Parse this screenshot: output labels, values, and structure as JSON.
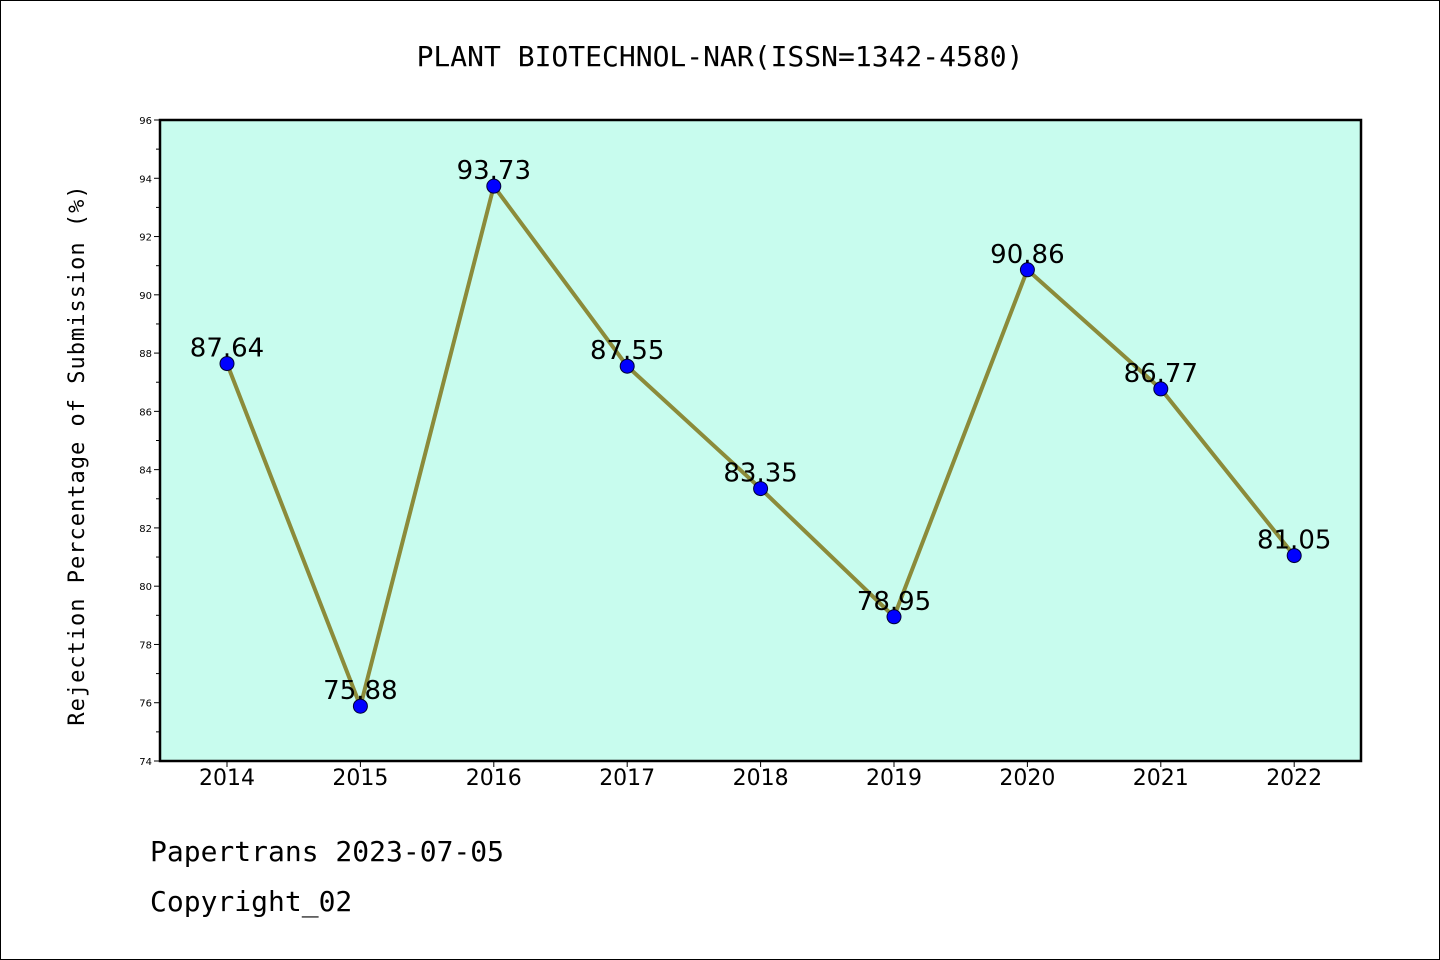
{
  "chart_data": {
    "type": "line",
    "title": "PLANT BIOTECHNOL-NAR(ISSN=1342-4580)",
    "xlabel": "",
    "ylabel": "Rejection Percentage of Submission (%)",
    "categories": [
      "2014",
      "2015",
      "2016",
      "2017",
      "2018",
      "2019",
      "2020",
      "2021",
      "2022"
    ],
    "series": [
      {
        "values": [
          87.64,
          75.88,
          93.73,
          87.55,
          83.35,
          78.95,
          90.86,
          86.77,
          81.05
        ],
        "data_labels": [
          "87.64",
          "75.88",
          "93.73",
          "87.55",
          "83.35",
          "78.95",
          "90.86",
          "86.77",
          "81.05"
        ]
      }
    ],
    "ylim": [
      74,
      96
    ],
    "yticks": [
      "74",
      "76",
      "78",
      "80",
      "82",
      "84",
      "86",
      "88",
      "90",
      "92",
      "94",
      "96"
    ],
    "grid": false,
    "colors": {
      "plot_background": "#c8fcee",
      "line": "#8b8b3a",
      "marker": "#0000ff"
    }
  },
  "footer": {
    "source": "Papertrans 2023-07-05",
    "copyright": "Copyright_02"
  }
}
